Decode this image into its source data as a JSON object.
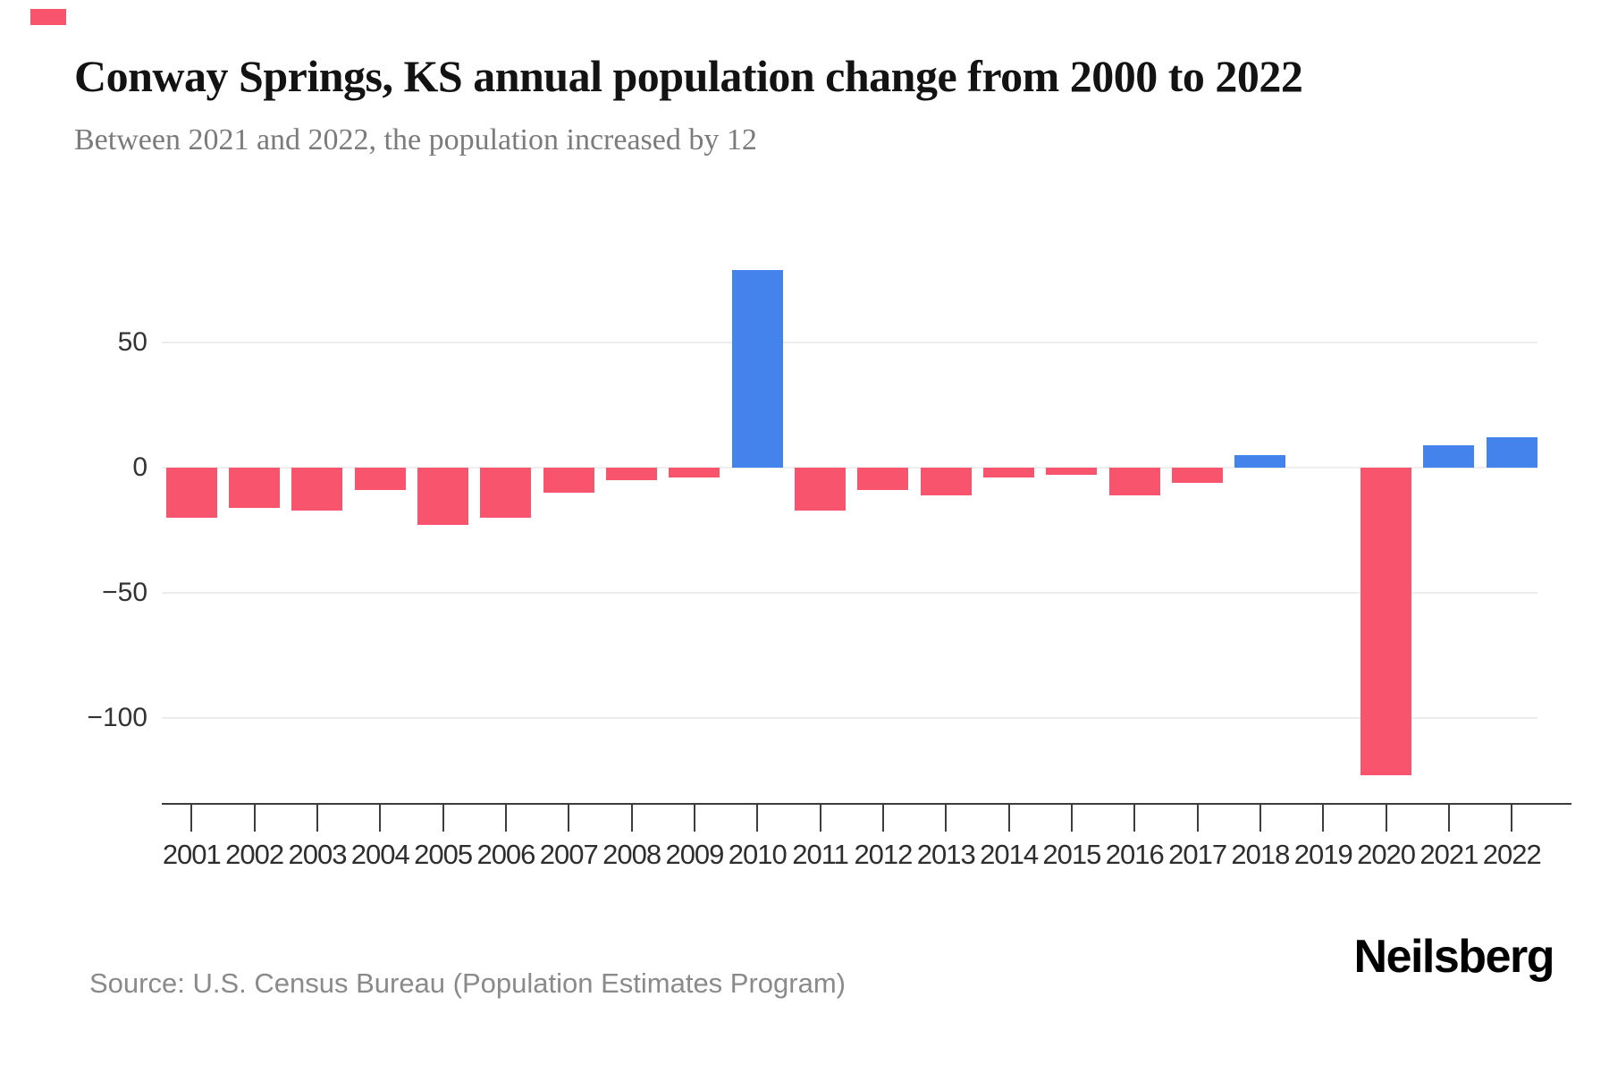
{
  "brand": {
    "logo_text": "Neilsberg",
    "accent_color": "#f8546e"
  },
  "header": {
    "title": "Conway Springs, KS annual population change from 2000 to 2022",
    "subtitle": "Between 2021 and 2022, the population increased by 12"
  },
  "footer": {
    "source": "Source: U.S. Census Bureau (Population Estimates Program)"
  },
  "chart_data": {
    "type": "bar",
    "title": "Conway Springs, KS annual population change from 2000 to 2022",
    "subtitle": "Between 2021 and 2022, the population increased by 12",
    "categories": [
      "2001",
      "2002",
      "2003",
      "2004",
      "2005",
      "2006",
      "2007",
      "2008",
      "2009",
      "2010",
      "2011",
      "2012",
      "2013",
      "2014",
      "2015",
      "2016",
      "2017",
      "2018",
      "2019",
      "2020",
      "2021",
      "2022"
    ],
    "values": [
      -20,
      -16,
      -17,
      -9,
      -23,
      -20,
      -10,
      -5,
      -4,
      79,
      -17,
      -9,
      -11,
      -4,
      -3,
      -11,
      -6,
      5,
      0,
      -123,
      9,
      12
    ],
    "xlabel": "",
    "ylabel": "",
    "ylim": [
      -135,
      90
    ],
    "yticks": [
      {
        "value": 50,
        "label": "50"
      },
      {
        "value": 0,
        "label": "0"
      },
      {
        "value": -50,
        "label": "−50"
      },
      {
        "value": -100,
        "label": "−100"
      }
    ],
    "grid": true,
    "legend": false,
    "positive_color": "#4583ec",
    "negative_color": "#f8546e"
  }
}
